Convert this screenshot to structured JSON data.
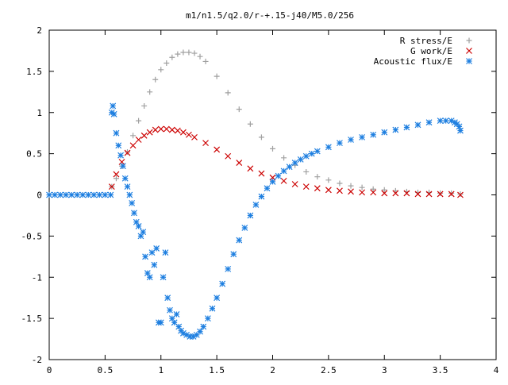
{
  "chart_data": {
    "type": "scatter",
    "title": "m1/n1.5/q2.0/r-+.15-j40/M5.0/256",
    "xlim": [
      0,
      4
    ],
    "ylim": [
      -2,
      2
    ],
    "xticks": [
      0,
      0.5,
      1,
      1.5,
      2,
      2.5,
      3,
      3.5,
      4
    ],
    "yticks": [
      2,
      1.5,
      1,
      0.5,
      0,
      -0.5,
      -1,
      -1.5,
      -2
    ],
    "xtick_labels": [
      "0",
      "0.5",
      "1",
      "1.5",
      "2",
      "2.5",
      "3",
      "3.5",
      "4"
    ],
    "ytick_labels": [
      "2",
      "1.5",
      "1",
      "0.5",
      "0",
      "-0.5",
      "-1",
      "-1.5",
      "-2"
    ],
    "grid": false,
    "legend_position": "top-right",
    "series": [
      {
        "name": "R stress/E",
        "marker": "plus",
        "color": "#a0a0a0",
        "x": [
          0.56,
          0.6,
          0.65,
          0.7,
          0.75,
          0.8,
          0.85,
          0.9,
          0.95,
          1.0,
          1.05,
          1.1,
          1.15,
          1.2,
          1.25,
          1.3,
          1.35,
          1.4,
          1.5,
          1.6,
          1.7,
          1.8,
          1.9,
          2.0,
          2.1,
          2.2,
          2.3,
          2.4,
          2.5,
          2.6,
          2.7,
          2.8,
          2.9,
          3.0,
          3.1,
          3.2,
          3.3,
          3.4,
          3.5,
          3.6,
          3.68
        ],
        "y": [
          0.1,
          0.2,
          0.35,
          0.52,
          0.72,
          0.9,
          1.08,
          1.25,
          1.4,
          1.52,
          1.6,
          1.67,
          1.71,
          1.73,
          1.73,
          1.72,
          1.68,
          1.62,
          1.44,
          1.24,
          1.04,
          0.86,
          0.7,
          0.56,
          0.45,
          0.36,
          0.28,
          0.22,
          0.18,
          0.14,
          0.11,
          0.09,
          0.07,
          0.06,
          0.05,
          0.04,
          0.03,
          0.03,
          0.02,
          0.02,
          0.01
        ]
      },
      {
        "name": "G work/E",
        "marker": "cross",
        "color": "#cc0000",
        "x": [
          0.56,
          0.6,
          0.65,
          0.7,
          0.75,
          0.8,
          0.85,
          0.9,
          0.95,
          1.0,
          1.05,
          1.1,
          1.15,
          1.2,
          1.25,
          1.3,
          1.4,
          1.5,
          1.6,
          1.7,
          1.8,
          1.9,
          2.0,
          2.1,
          2.2,
          2.3,
          2.4,
          2.5,
          2.6,
          2.7,
          2.8,
          2.9,
          3.0,
          3.1,
          3.2,
          3.3,
          3.4,
          3.5,
          3.6,
          3.68
        ],
        "y": [
          0.1,
          0.25,
          0.4,
          0.51,
          0.6,
          0.67,
          0.72,
          0.76,
          0.79,
          0.8,
          0.8,
          0.79,
          0.78,
          0.76,
          0.73,
          0.7,
          0.63,
          0.55,
          0.47,
          0.39,
          0.32,
          0.26,
          0.21,
          0.17,
          0.13,
          0.1,
          0.08,
          0.06,
          0.05,
          0.04,
          0.03,
          0.03,
          0.02,
          0.02,
          0.02,
          0.01,
          0.01,
          0.01,
          0.01,
          0.0
        ]
      },
      {
        "name": "Acoustic flux/E",
        "marker": "star",
        "color": "#1e7fe0",
        "x": [
          0.0,
          0.05,
          0.1,
          0.15,
          0.2,
          0.25,
          0.3,
          0.35,
          0.4,
          0.45,
          0.5,
          0.55,
          0.56,
          0.57,
          0.58,
          0.6,
          0.62,
          0.64,
          0.66,
          0.68,
          0.7,
          0.72,
          0.74,
          0.76,
          0.78,
          0.8,
          0.82,
          0.84,
          0.86,
          0.88,
          0.9,
          0.92,
          0.94,
          0.96,
          0.98,
          1.0,
          1.02,
          1.04,
          1.06,
          1.08,
          1.1,
          1.12,
          1.14,
          1.16,
          1.18,
          1.2,
          1.23,
          1.26,
          1.29,
          1.32,
          1.35,
          1.38,
          1.42,
          1.46,
          1.5,
          1.55,
          1.6,
          1.65,
          1.7,
          1.75,
          1.8,
          1.85,
          1.9,
          1.95,
          2.0,
          2.05,
          2.1,
          2.15,
          2.2,
          2.25,
          2.3,
          2.35,
          2.4,
          2.5,
          2.6,
          2.7,
          2.8,
          2.9,
          3.0,
          3.1,
          3.2,
          3.3,
          3.4,
          3.5,
          3.55,
          3.6,
          3.63,
          3.65,
          3.67,
          3.68
        ],
        "y": [
          0.0,
          0.0,
          0.0,
          0.0,
          0.0,
          0.0,
          0.0,
          0.0,
          0.0,
          0.0,
          0.0,
          0.0,
          1.0,
          1.08,
          0.98,
          0.75,
          0.6,
          0.48,
          0.35,
          0.2,
          0.1,
          0.0,
          -0.1,
          -0.22,
          -0.33,
          -0.38,
          -0.5,
          -0.45,
          -0.75,
          -0.95,
          -1.0,
          -0.7,
          -0.85,
          -0.65,
          -1.55,
          -1.55,
          -1.0,
          -0.7,
          -1.25,
          -1.4,
          -1.5,
          -1.55,
          -1.45,
          -1.6,
          -1.65,
          -1.68,
          -1.7,
          -1.72,
          -1.72,
          -1.7,
          -1.66,
          -1.6,
          -1.5,
          -1.38,
          -1.25,
          -1.08,
          -0.9,
          -0.72,
          -0.55,
          -0.4,
          -0.25,
          -0.12,
          -0.02,
          0.08,
          0.16,
          0.23,
          0.29,
          0.34,
          0.39,
          0.43,
          0.47,
          0.5,
          0.53,
          0.58,
          0.63,
          0.67,
          0.7,
          0.73,
          0.76,
          0.79,
          0.82,
          0.85,
          0.88,
          0.9,
          0.9,
          0.9,
          0.88,
          0.86,
          0.83,
          0.78
        ]
      }
    ]
  }
}
